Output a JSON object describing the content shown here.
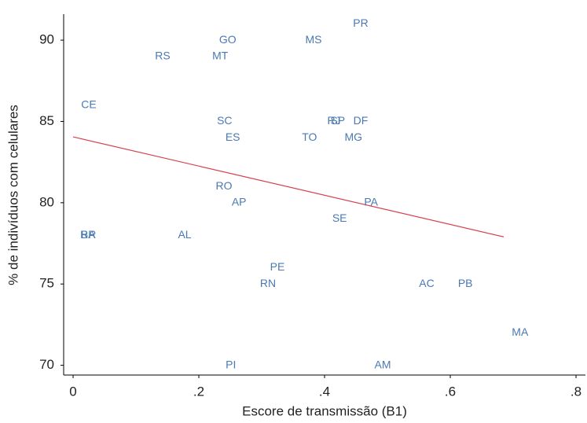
{
  "chart_data": {
    "type": "scatter",
    "x_label": "Escore de transmissão (B1)",
    "y_label": "% de indivíduos com celulares",
    "labels": [
      "PR",
      "MS",
      "GO",
      "RS",
      "MT",
      "CE",
      "SC",
      "RJ",
      "SP",
      "DF",
      "ES",
      "TO",
      "MG",
      "RO",
      "AP",
      "PA",
      "SE",
      "BA",
      "RR",
      "AL",
      "PE",
      "RN",
      "AC",
      "PB",
      "MA",
      "PI",
      "AM"
    ],
    "x": [
      0.4575,
      0.3825,
      0.246,
      0.1425,
      0.234,
      0.025,
      0.241,
      0.415,
      0.421,
      0.4575,
      0.254,
      0.376,
      0.446,
      0.24,
      0.264,
      0.474,
      0.424,
      0.024,
      0.024,
      0.1775,
      0.325,
      0.31,
      0.5625,
      0.624,
      0.711,
      0.251,
      0.4925
    ],
    "values": [
      91,
      90,
      90,
      89,
      89,
      86,
      85,
      85,
      85,
      85,
      84,
      84,
      84,
      81,
      80,
      80,
      79,
      78,
      78,
      78,
      76,
      75,
      75,
      75,
      72,
      70,
      70
    ],
    "color": "#4a79b3",
    "fit_line": {
      "x": [
        0,
        0.685
      ],
      "y": [
        84.05,
        77.9
      ],
      "color": "#d6404f"
    },
    "xlim": [
      -0.015,
      0.815
    ],
    "ylim": [
      69.4,
      91.6
    ],
    "xticks": [
      0,
      {
        "value": 0.2,
        "label": ".2"
      },
      {
        "value": 0.4,
        "label": ".4"
      },
      {
        "value": 0.6,
        "label": ".6"
      },
      {
        "value": 0.8,
        "label": ".8"
      }
    ],
    "yticks": [
      70,
      75,
      80,
      85,
      90
    ]
  }
}
